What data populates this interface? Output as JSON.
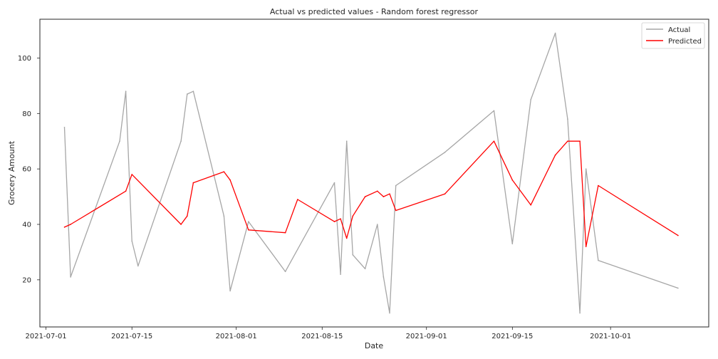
{
  "chart_data": {
    "type": "line",
    "title": "Actual vs predicted values - Random forest regressor",
    "xlabel": "Date",
    "ylabel": "Grocery Amount",
    "x_axis_type": "date",
    "xlim": [
      "2021-06-30",
      "2021-10-17"
    ],
    "ylim": [
      3,
      114
    ],
    "xticks": [
      "2021-07-01",
      "2021-07-15",
      "2021-08-01",
      "2021-08-15",
      "2021-09-01",
      "2021-09-15",
      "2021-10-01"
    ],
    "yticks": [
      20,
      40,
      60,
      80,
      100
    ],
    "grid": false,
    "legend_position": "top-right",
    "series": [
      {
        "name": "Actual",
        "color": "#a6a6a6",
        "points": [
          [
            "2021-07-04",
            75
          ],
          [
            "2021-07-05",
            21
          ],
          [
            "2021-07-13",
            70
          ],
          [
            "2021-07-14",
            88
          ],
          [
            "2021-07-15",
            34
          ],
          [
            "2021-07-16",
            25
          ],
          [
            "2021-07-23",
            70
          ],
          [
            "2021-07-24",
            87
          ],
          [
            "2021-07-25",
            88
          ],
          [
            "2021-07-30",
            43
          ],
          [
            "2021-07-31",
            16
          ],
          [
            "2021-08-03",
            41
          ],
          [
            "2021-08-09",
            23
          ],
          [
            "2021-08-17",
            55
          ],
          [
            "2021-08-18",
            22
          ],
          [
            "2021-08-19",
            70
          ],
          [
            "2021-08-20",
            29
          ],
          [
            "2021-08-22",
            24
          ],
          [
            "2021-08-24",
            40
          ],
          [
            "2021-08-25",
            21
          ],
          [
            "2021-08-26",
            8
          ],
          [
            "2021-08-27",
            54
          ],
          [
            "2021-09-04",
            66
          ],
          [
            "2021-09-12",
            81
          ],
          [
            "2021-09-15",
            33
          ],
          [
            "2021-09-18",
            85
          ],
          [
            "2021-09-22",
            109
          ],
          [
            "2021-09-24",
            78
          ],
          [
            "2021-09-26",
            8
          ],
          [
            "2021-09-27",
            60
          ],
          [
            "2021-09-29",
            27
          ],
          [
            "2021-10-12",
            17
          ]
        ]
      },
      {
        "name": "Predicted",
        "color": "#ff0000",
        "points": [
          [
            "2021-07-04",
            39
          ],
          [
            "2021-07-05",
            40
          ],
          [
            "2021-07-14",
            52
          ],
          [
            "2021-07-15",
            58
          ],
          [
            "2021-07-23",
            40
          ],
          [
            "2021-07-24",
            43
          ],
          [
            "2021-07-25",
            55
          ],
          [
            "2021-07-30",
            59
          ],
          [
            "2021-07-31",
            56
          ],
          [
            "2021-08-03",
            38
          ],
          [
            "2021-08-09",
            37
          ],
          [
            "2021-08-11",
            49
          ],
          [
            "2021-08-17",
            41
          ],
          [
            "2021-08-18",
            42
          ],
          [
            "2021-08-19",
            35
          ],
          [
            "2021-08-20",
            43
          ],
          [
            "2021-08-22",
            50
          ],
          [
            "2021-08-24",
            52
          ],
          [
            "2021-08-25",
            50
          ],
          [
            "2021-08-26",
            51
          ],
          [
            "2021-08-27",
            45
          ],
          [
            "2021-09-04",
            51
          ],
          [
            "2021-09-12",
            70
          ],
          [
            "2021-09-15",
            56
          ],
          [
            "2021-09-18",
            47
          ],
          [
            "2021-09-22",
            65
          ],
          [
            "2021-09-24",
            70
          ],
          [
            "2021-09-26",
            70
          ],
          [
            "2021-09-27",
            32
          ],
          [
            "2021-09-29",
            54
          ],
          [
            "2021-10-12",
            36
          ]
        ]
      }
    ]
  }
}
